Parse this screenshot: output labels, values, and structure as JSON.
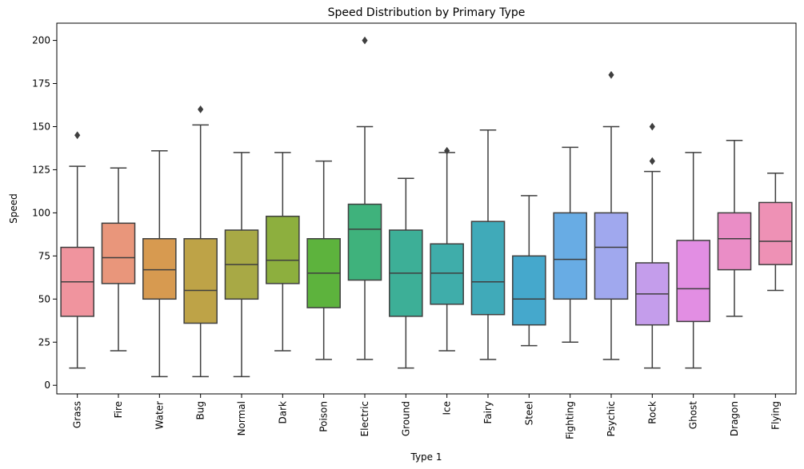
{
  "chart_data": {
    "type": "box",
    "title": "Speed Distribution by Primary Type",
    "xlabel": "Type 1",
    "ylabel": "Speed",
    "ylim": [
      -5,
      210
    ],
    "yticks": [
      0,
      25,
      50,
      75,
      100,
      125,
      150,
      175,
      200
    ],
    "grid": false,
    "legend": "none",
    "series": [
      {
        "category": "Grass",
        "color": "#f0949e",
        "whisker_low": 10,
        "q1": 40,
        "median": 60,
        "q3": 80,
        "whisker_high": 127,
        "outliers": [
          145
        ]
      },
      {
        "category": "Fire",
        "color": "#e9967b",
        "whisker_low": 20,
        "q1": 59,
        "median": 74,
        "q3": 94,
        "whisker_high": 126,
        "outliers": []
      },
      {
        "category": "Water",
        "color": "#d79a50",
        "whisker_low": 5,
        "q1": 50,
        "median": 67,
        "q3": 85,
        "whisker_high": 136,
        "outliers": []
      },
      {
        "category": "Bug",
        "color": "#bea347",
        "whisker_low": 5,
        "q1": 36,
        "median": 55,
        "q3": 85,
        "whisker_high": 151,
        "outliers": [
          160
        ]
      },
      {
        "category": "Normal",
        "color": "#a8a945",
        "whisker_low": 5,
        "q1": 50,
        "median": 70,
        "q3": 90,
        "whisker_high": 135,
        "outliers": []
      },
      {
        "category": "Dark",
        "color": "#8daf3e",
        "whisker_low": 20,
        "q1": 59,
        "median": 72.5,
        "q3": 98,
        "whisker_high": 135,
        "outliers": []
      },
      {
        "category": "Poison",
        "color": "#5db33d",
        "whisker_low": 15,
        "q1": 45,
        "median": 65,
        "q3": 85,
        "whisker_high": 130,
        "outliers": []
      },
      {
        "category": "Electric",
        "color": "#3fb27c",
        "whisker_low": 15,
        "q1": 61,
        "median": 90.5,
        "q3": 105,
        "whisker_high": 150,
        "outliers": [
          200
        ]
      },
      {
        "category": "Ground",
        "color": "#3daf97",
        "whisker_low": 10,
        "q1": 40,
        "median": 65,
        "q3": 90,
        "whisker_high": 120,
        "outliers": []
      },
      {
        "category": "Ice",
        "color": "#3fadaa",
        "whisker_low": 20,
        "q1": 47,
        "median": 65,
        "q3": 82,
        "whisker_high": 135,
        "outliers": [
          136
        ]
      },
      {
        "category": "Fairy",
        "color": "#40aab9",
        "whisker_low": 15,
        "q1": 41,
        "median": 60,
        "q3": 95,
        "whisker_high": 148,
        "outliers": []
      },
      {
        "category": "Steel",
        "color": "#45a8cc",
        "whisker_low": 23,
        "q1": 35,
        "median": 50,
        "q3": 75,
        "whisker_high": 110,
        "outliers": []
      },
      {
        "category": "Fighting",
        "color": "#68ace4",
        "whisker_low": 25,
        "q1": 50,
        "median": 73,
        "q3": 100,
        "whisker_high": 138,
        "outliers": []
      },
      {
        "category": "Psychic",
        "color": "#a0a8ee",
        "whisker_low": 15,
        "q1": 50,
        "median": 80,
        "q3": 100,
        "whisker_high": 150,
        "outliers": [
          180
        ]
      },
      {
        "category": "Rock",
        "color": "#c49deb",
        "whisker_low": 10,
        "q1": 35,
        "median": 53,
        "q3": 71,
        "whisker_high": 124,
        "outliers": [
          130,
          150
        ]
      },
      {
        "category": "Ghost",
        "color": "#e28ee3",
        "whisker_low": 10,
        "q1": 37,
        "median": 56,
        "q3": 84,
        "whisker_high": 135,
        "outliers": []
      },
      {
        "category": "Dragon",
        "color": "#ea8dc6",
        "whisker_low": 40,
        "q1": 67,
        "median": 85,
        "q3": 100,
        "whisker_high": 142,
        "outliers": []
      },
      {
        "category": "Flying",
        "color": "#ee91b5",
        "whisker_low": 55,
        "q1": 70,
        "median": 83.5,
        "q3": 106,
        "whisker_high": 123,
        "outliers": []
      }
    ]
  }
}
